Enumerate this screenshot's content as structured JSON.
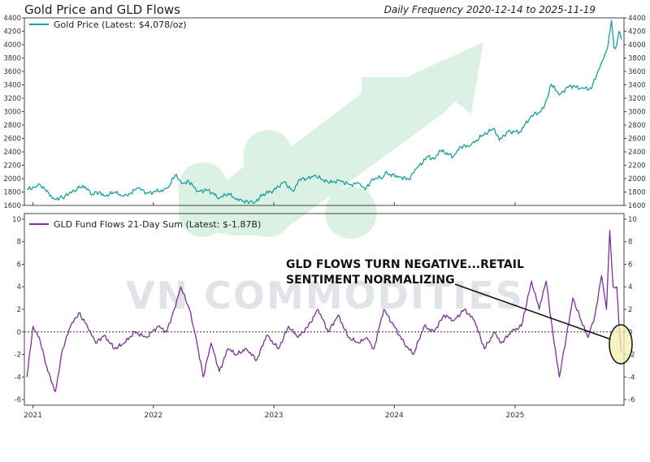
{
  "title": "Gold Price and GLD Flows",
  "subtitle": "Daily Frequency 2020-12-14 to 2025-11-19",
  "watermark": "VN COMMODITIES",
  "annotation": {
    "line1": "GLD FLOWS TURN NEGATIVE...RETAIL",
    "line2": "SENTIMENT NORMALIZING"
  },
  "colors": {
    "gold_line": "#1a9e9e",
    "flows_line": "#7b3294",
    "zero_line": "#333333",
    "highlight_fill": "#f6efb0",
    "arrow_watermark": "#bfe6cf",
    "watermark_text": "#c8cdd6"
  },
  "x_ticks": [
    "2021",
    "2022",
    "2023",
    "2024",
    "2025"
  ],
  "chart_data": [
    {
      "type": "line",
      "legend": "Gold Price (Latest: $4,078/oz)",
      "legend_position": "top-left",
      "x_range": [
        "2020-12-14",
        "2025-11-19"
      ],
      "ylim": [
        1600,
        4400
      ],
      "y_ticks": [
        1600,
        1800,
        2000,
        2200,
        2400,
        2600,
        2800,
        3000,
        3200,
        3400,
        3600,
        3800,
        4000,
        4200,
        4400
      ],
      "y_tick_labels_shown": [
        1600,
        1800,
        2000,
        2200,
        2400,
        2600,
        2800,
        3000,
        3200,
        3400,
        3600,
        3800,
        4000,
        4200,
        4400
      ],
      "x": [
        "2020-12-14",
        "2021-01-05",
        "2021-01-20",
        "2021-02-10",
        "2021-03-08",
        "2021-03-31",
        "2021-04-20",
        "2021-05-15",
        "2021-06-01",
        "2021-06-30",
        "2021-07-20",
        "2021-08-09",
        "2021-09-05",
        "2021-09-29",
        "2021-10-20",
        "2021-11-16",
        "2021-12-15",
        "2022-01-25",
        "2022-02-15",
        "2022-03-08",
        "2022-03-31",
        "2022-04-18",
        "2022-05-16",
        "2022-06-15",
        "2022-07-20",
        "2022-08-15",
        "2022-09-01",
        "2022-09-28",
        "2022-10-20",
        "2022-11-03",
        "2022-11-30",
        "2022-12-30",
        "2023-02-01",
        "2023-02-28",
        "2023-03-20",
        "2023-04-13",
        "2023-05-04",
        "2023-06-15",
        "2023-07-20",
        "2023-08-20",
        "2023-09-15",
        "2023-10-05",
        "2023-10-27",
        "2023-11-28",
        "2023-12-04",
        "2024-01-15",
        "2024-02-14",
        "2024-03-08",
        "2024-04-12",
        "2024-05-01",
        "2024-05-20",
        "2024-06-28",
        "2024-07-17",
        "2024-08-20",
        "2024-09-25",
        "2024-10-30",
        "2024-11-14",
        "2024-12-10",
        "2025-01-15",
        "2025-02-20",
        "2025-03-20",
        "2025-04-01",
        "2025-04-21",
        "2025-05-15",
        "2025-06-15",
        "2025-07-20",
        "2025-08-20",
        "2025-09-10",
        "2025-09-30",
        "2025-10-10",
        "2025-10-20",
        "2025-10-28",
        "2025-11-05",
        "2025-11-12",
        "2025-11-19"
      ],
      "y": [
        1840,
        1870,
        1920,
        1810,
        1690,
        1720,
        1770,
        1850,
        1900,
        1770,
        1800,
        1740,
        1800,
        1740,
        1780,
        1860,
        1780,
        1830,
        1870,
        2050,
        1930,
        1960,
        1810,
        1830,
        1710,
        1780,
        1720,
        1660,
        1650,
        1640,
        1770,
        1820,
        1950,
        1810,
        1990,
        2000,
        2050,
        1940,
        1970,
        1910,
        1930,
        1830,
        2000,
        2020,
        2080,
        2030,
        1990,
        2150,
        2330,
        2290,
        2420,
        2330,
        2470,
        2500,
        2650,
        2750,
        2570,
        2700,
        2700,
        2940,
        3000,
        3100,
        3410,
        3250,
        3390,
        3350,
        3340,
        3620,
        3850,
        4000,
        4360,
        3950,
        4000,
        4200,
        4078
      ]
    },
    {
      "type": "line",
      "legend": "GLD Fund Flows 21-Day Sum (Latest: $-1.87B)",
      "legend_position": "top-left",
      "x_range": [
        "2020-12-14",
        "2025-11-19"
      ],
      "ylim": [
        -6.5,
        10.5
      ],
      "y_ticks": [
        -6,
        -4,
        -2,
        0,
        2,
        4,
        6,
        8,
        10
      ],
      "zero_line": "dotted",
      "x": [
        "2020-12-14",
        "2021-01-01",
        "2021-01-20",
        "2021-02-15",
        "2021-03-10",
        "2021-04-01",
        "2021-04-25",
        "2021-05-20",
        "2021-06-15",
        "2021-07-10",
        "2021-08-05",
        "2021-09-05",
        "2021-10-05",
        "2021-11-05",
        "2021-12-10",
        "2022-01-15",
        "2022-02-10",
        "2022-03-05",
        "2022-03-25",
        "2022-04-20",
        "2022-05-10",
        "2022-06-01",
        "2022-06-25",
        "2022-07-20",
        "2022-08-15",
        "2022-09-10",
        "2022-10-10",
        "2022-11-10",
        "2022-12-10",
        "2023-01-15",
        "2023-02-15",
        "2023-03-15",
        "2023-04-15",
        "2023-05-15",
        "2023-06-15",
        "2023-07-15",
        "2023-08-15",
        "2023-09-15",
        "2023-10-10",
        "2023-10-31",
        "2023-11-30",
        "2023-12-31",
        "2024-01-31",
        "2024-02-28",
        "2024-03-31",
        "2024-04-30",
        "2024-05-31",
        "2024-06-30",
        "2024-07-31",
        "2024-08-31",
        "2024-09-30",
        "2024-10-31",
        "2024-11-20",
        "2024-12-20",
        "2025-01-20",
        "2025-02-20",
        "2025-03-15",
        "2025-04-05",
        "2025-04-25",
        "2025-05-15",
        "2025-06-05",
        "2025-06-25",
        "2025-07-20",
        "2025-08-10",
        "2025-08-31",
        "2025-09-20",
        "2025-10-05",
        "2025-10-15",
        "2025-10-25",
        "2025-11-05",
        "2025-11-12",
        "2025-11-19"
      ],
      "y": [
        -4.0,
        0.5,
        -0.5,
        -3.5,
        -5.3,
        -1.5,
        0.5,
        1.7,
        0.5,
        -1.0,
        -0.3,
        -1.5,
        -1.0,
        0.0,
        -0.5,
        0.5,
        0.0,
        2.0,
        4.0,
        2.0,
        -0.5,
        -4.0,
        -1.0,
        -3.5,
        -1.5,
        -2.0,
        -1.5,
        -2.5,
        -0.3,
        -1.5,
        0.5,
        -0.5,
        0.5,
        2.0,
        0.0,
        1.5,
        -0.5,
        -1.0,
        -0.5,
        -1.5,
        2.0,
        0.5,
        -1.0,
        -2.0,
        0.5,
        0.0,
        1.5,
        1.0,
        2.0,
        1.0,
        -1.5,
        0.0,
        -1.0,
        0.0,
        0.5,
        4.5,
        2.0,
        4.5,
        0.0,
        -4.0,
        -0.5,
        3.0,
        1.0,
        -0.5,
        1.5,
        5.0,
        2.0,
        9.0,
        4.0,
        4.0,
        0.5,
        -1.87
      ]
    }
  ]
}
